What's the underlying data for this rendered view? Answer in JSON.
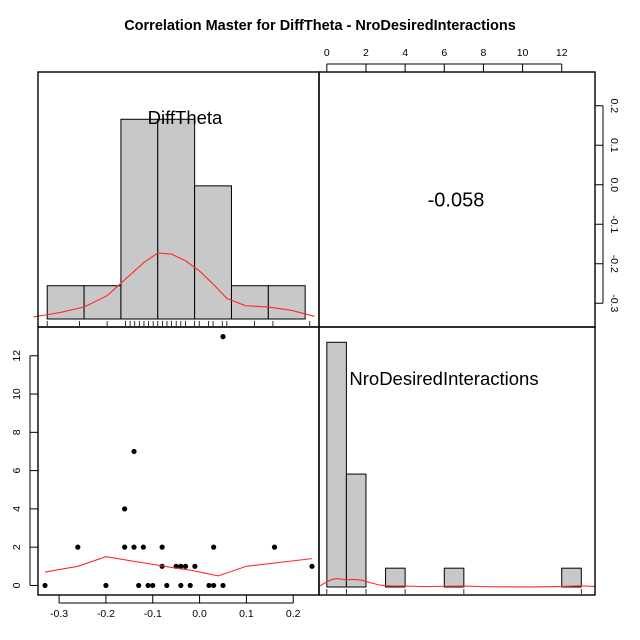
{
  "title": "Correlation Master for DiffTheta - NroDesiredInteractions",
  "colors": {
    "hist_fill": "#c8c8c8",
    "density": "#ff2a2a",
    "axis": "#000000"
  },
  "chart_data": [
    {
      "panel": "top-left",
      "type": "histogram",
      "diag_label": "DiffTheta",
      "bins": [
        -0.33,
        -0.25,
        -0.17,
        -0.09,
        -0.01,
        0.07,
        0.15,
        0.23
      ],
      "counts": [
        1,
        1,
        6,
        6,
        4,
        1,
        1
      ],
      "rug": [
        -0.33,
        -0.26,
        -0.2,
        -0.16,
        -0.15,
        -0.14,
        -0.13,
        -0.12,
        -0.11,
        -0.1,
        -0.09,
        -0.08,
        -0.07,
        -0.06,
        -0.05,
        -0.04,
        -0.03,
        -0.01,
        0.0,
        0.02,
        0.03,
        0.05,
        0.06,
        0.12,
        0.16,
        0.24
      ],
      "density": [
        [
          -0.36,
          0.06
        ],
        [
          -0.3,
          0.2
        ],
        [
          -0.25,
          0.36
        ],
        [
          -0.2,
          0.7
        ],
        [
          -0.16,
          1.2
        ],
        [
          -0.12,
          1.7
        ],
        [
          -0.09,
          1.98
        ],
        [
          -0.06,
          1.95
        ],
        [
          -0.03,
          1.75
        ],
        [
          0.0,
          1.45
        ],
        [
          0.03,
          1.05
        ],
        [
          0.06,
          0.62
        ],
        [
          0.1,
          0.4
        ],
        [
          0.15,
          0.36
        ],
        [
          0.2,
          0.26
        ],
        [
          0.25,
          0.08
        ]
      ],
      "xlim": [
        -0.35,
        0.26
      ],
      "ylim": [
        0,
        7.3
      ]
    },
    {
      "panel": "top-right",
      "type": "correlation",
      "value": "-0.058",
      "top_axis": {
        "lim": [
          -0.4,
          13.7
        ],
        "ticks": [
          0,
          2,
          4,
          6,
          8,
          10,
          12
        ]
      },
      "right_axis": {
        "lim": [
          -0.35,
          0.25
        ],
        "ticks": [
          0.2,
          0.1,
          0.0,
          -0.1,
          -0.2,
          -0.3
        ],
        "tick_labels": [
          "0.2",
          "0.1",
          "0.0",
          "-0.1",
          "-0.2",
          "-0.3"
        ]
      }
    },
    {
      "panel": "bottom-left",
      "type": "scatter",
      "x": [
        -0.33,
        -0.26,
        -0.2,
        -0.16,
        -0.16,
        -0.14,
        -0.14,
        -0.13,
        -0.12,
        -0.11,
        -0.1,
        -0.08,
        -0.08,
        -0.07,
        -0.05,
        -0.04,
        -0.04,
        -0.03,
        -0.02,
        -0.01,
        0.02,
        0.03,
        0.03,
        0.05,
        0.05,
        0.16,
        0.24
      ],
      "y": [
        0,
        2,
        0,
        4,
        2,
        7,
        2,
        0,
        2,
        0,
        0,
        2,
        1,
        0,
        1,
        0,
        1,
        1,
        0,
        1,
        0,
        2,
        0,
        0,
        13,
        2,
        1
      ],
      "smooth": [
        [
          -0.33,
          0.7
        ],
        [
          -0.26,
          1.0
        ],
        [
          -0.2,
          1.5
        ],
        [
          -0.15,
          1.3
        ],
        [
          -0.1,
          1.1
        ],
        [
          -0.05,
          0.9
        ],
        [
          -0.02,
          0.8
        ],
        [
          0.02,
          0.6
        ],
        [
          0.04,
          0.5
        ],
        [
          0.1,
          1.0
        ],
        [
          0.24,
          1.4
        ]
      ],
      "xlim": [
        -0.345,
        0.255
      ],
      "ylim": [
        -0.5,
        13.4
      ],
      "x_ticks": [
        -0.3,
        -0.2,
        -0.1,
        0.0,
        0.1,
        0.2
      ],
      "x_tick_labels": [
        "-0.3",
        "-0.2",
        "-0.1",
        "0.0",
        "0.1",
        "0.2"
      ],
      "y_ticks": [
        0,
        2,
        4,
        6,
        8,
        10,
        12
      ]
    },
    {
      "panel": "bottom-right",
      "type": "histogram",
      "diag_label": "NroDesiredInteractions",
      "bins": [
        0,
        1,
        2,
        3,
        4,
        5,
        6,
        7,
        8,
        9,
        10,
        11,
        12,
        13
      ],
      "counts": [
        13,
        6,
        0,
        1,
        0,
        0,
        1,
        0,
        0,
        0,
        0,
        0,
        1
      ],
      "rug": [
        0,
        1,
        2,
        4,
        7,
        13
      ],
      "density": [
        [
          -0.4,
          0.03
        ],
        [
          0,
          0.28
        ],
        [
          0.3,
          0.42
        ],
        [
          0.6,
          0.44
        ],
        [
          1.0,
          0.38
        ],
        [
          1.4,
          0.4
        ],
        [
          1.8,
          0.36
        ],
        [
          2.2,
          0.24
        ],
        [
          2.7,
          0.1
        ],
        [
          3.3,
          0.05
        ],
        [
          4.0,
          0.05
        ],
        [
          5.0,
          0.02
        ],
        [
          6.0,
          0.04
        ],
        [
          7.0,
          0.05
        ],
        [
          8.0,
          0.02
        ],
        [
          9.0,
          0.01
        ],
        [
          10.5,
          0.005
        ],
        [
          12.0,
          0.03
        ],
        [
          13.0,
          0.06
        ],
        [
          13.7,
          0.03
        ]
      ],
      "xlim": [
        -0.4,
        13.7
      ],
      "ylim": [
        0,
        13.6
      ]
    }
  ]
}
